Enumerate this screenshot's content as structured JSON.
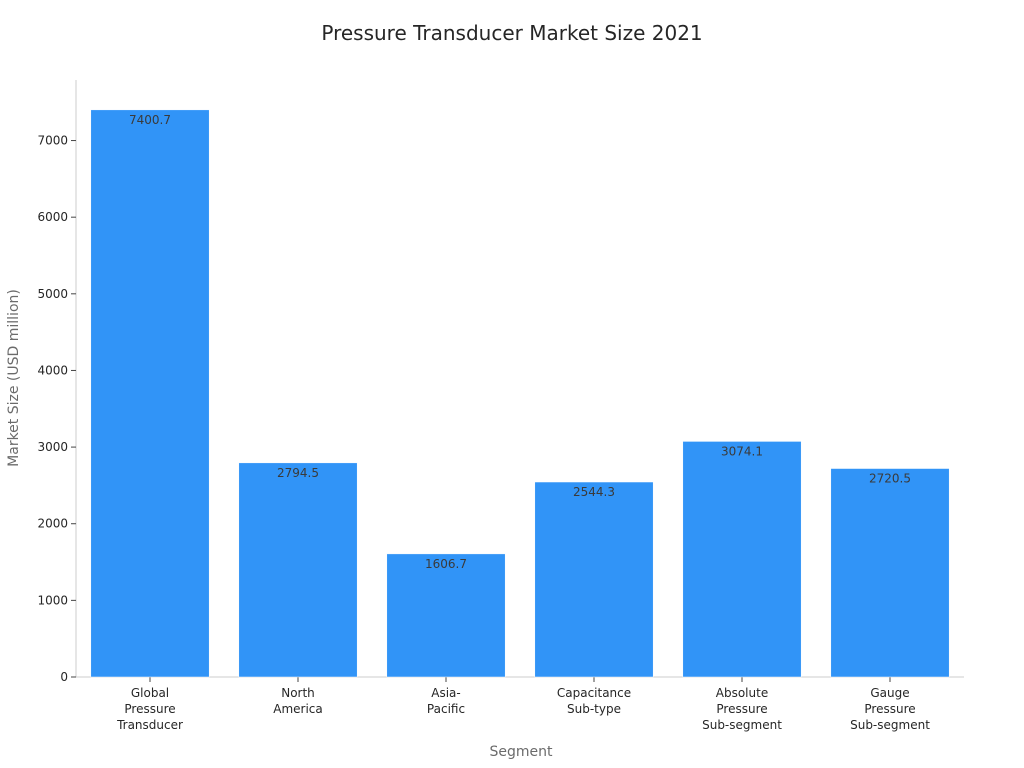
{
  "chart_data": {
    "type": "bar",
    "title": "Pressure Transducer Market Size 2021",
    "xlabel": "Segment",
    "ylabel": "Market Size (USD million)",
    "categories": [
      [
        "Global",
        "Pressure",
        "Transducer"
      ],
      [
        "North",
        "America"
      ],
      [
        "Asia-",
        "Pacific"
      ],
      [
        "Capacitance",
        "Sub-type"
      ],
      [
        "Absolute",
        "Pressure",
        "Sub-segment"
      ],
      [
        "Gauge",
        "Pressure",
        "Sub-segment"
      ]
    ],
    "values": [
      7400.7,
      2794.5,
      1606.7,
      2544.3,
      3074.1,
      2720.5
    ],
    "value_labels": [
      "7400.7",
      "2794.5",
      "1606.7",
      "2544.3",
      "3074.1",
      "2720.5"
    ],
    "yticks": [
      0,
      1000,
      2000,
      3000,
      4000,
      5000,
      6000,
      7000
    ],
    "ylim": [
      0,
      7790
    ],
    "bar_color": "#3194f7",
    "grid": false,
    "legend": "none"
  }
}
